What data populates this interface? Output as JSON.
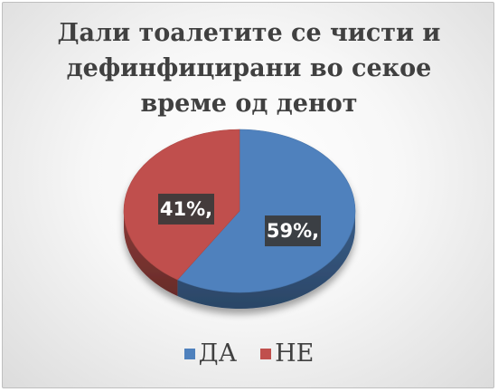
{
  "chart_data": {
    "type": "pie",
    "title": "Дали тоалетите се чисти и дефинфицирани во секое време од денот",
    "series": [
      {
        "name": "ДА",
        "value": 59,
        "label": "59%,",
        "color": "#4f81bd"
      },
      {
        "name": "НЕ",
        "value": 41,
        "label": "41%,",
        "color": "#c0504d"
      }
    ],
    "start_angle_deg": 0,
    "direction": "clockwise",
    "style": "3d",
    "legend": "bottom"
  }
}
